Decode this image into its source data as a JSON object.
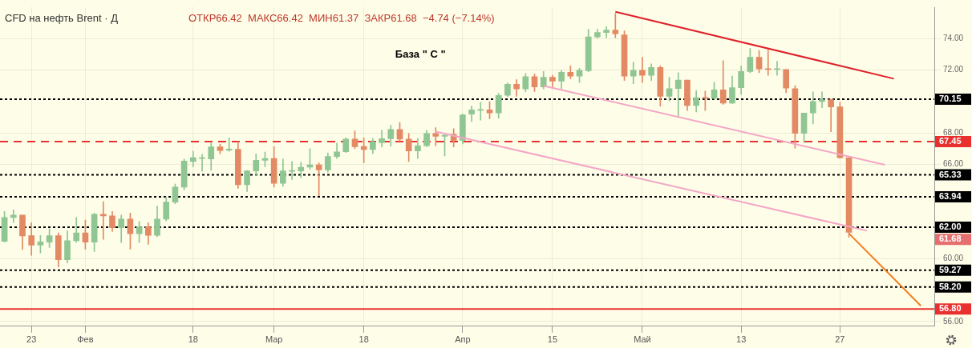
{
  "chart_data": {
    "type": "candlestick",
    "title": "CFD на нефть Brent · Д",
    "subtitle": "ОТКР66.42  МАКС66.42  МИН61.37  ЗАКР61.68  −4.74 (−7.14%)",
    "annotations": [
      "База \" С \"",
      "61.68"
    ],
    "categories": [
      null,
      null,
      null,
      "23",
      null,
      null,
      null,
      null,
      null,
      "Фев",
      null,
      null,
      null,
      null,
      null,
      null,
      null,
      null,
      null,
      null,
      null,
      "18",
      null,
      null,
      null,
      null,
      null,
      null,
      null,
      null,
      "Мар",
      null,
      null,
      null,
      null,
      null,
      null,
      null,
      null,
      null,
      "18",
      null,
      null,
      null,
      null,
      null,
      null,
      null,
      null,
      null,
      null,
      "Апр",
      null,
      null,
      null,
      null,
      null,
      null,
      null,
      null,
      null,
      "15",
      null,
      null,
      null,
      null,
      null,
      null,
      null,
      null,
      null,
      "Май",
      null,
      null,
      null,
      null,
      null,
      null,
      null,
      null,
      null,
      null,
      "13",
      null,
      null,
      null,
      null,
      null,
      null,
      null,
      null,
      null,
      null,
      "27",
      null,
      null,
      null,
      null,
      null,
      null,
      null,
      null,
      null,
      null
    ],
    "ylim": [
      55.7,
      76.0
    ],
    "yticks": [
      {
        "value": 56,
        "label": "56.00"
      },
      {
        "value": 60,
        "label": "60.00"
      },
      {
        "value": 66,
        "label": "66.00"
      },
      {
        "value": 68,
        "label": "68.00"
      },
      {
        "value": 72,
        "label": "72.00"
      },
      {
        "value": 74,
        "label": "74.00"
      }
    ],
    "grid": true,
    "series": [
      {
        "ohlc": [
          [
            61.1,
            63.0,
            61.07,
            62.62
          ],
          [
            62.62,
            63.1,
            62.3,
            62.77
          ],
          [
            62.78,
            62.78,
            60.58,
            61.45
          ],
          [
            61.46,
            62.29,
            60.21,
            60.86
          ],
          [
            60.86,
            61.48,
            60.37,
            61.07
          ],
          [
            61.05,
            61.89,
            60.71,
            61.46
          ],
          [
            61.46,
            61.64,
            59.47,
            59.93
          ],
          [
            59.93,
            61.77,
            59.73,
            61.15
          ],
          [
            61.14,
            62.62,
            61.04,
            61.64
          ],
          [
            61.64,
            62.46,
            60.61,
            61.05
          ],
          [
            61.05,
            62.9,
            60.45,
            62.83
          ],
          [
            62.83,
            63.63,
            61.23,
            62.72
          ],
          [
            62.72,
            63.0,
            61.72,
            61.97
          ],
          [
            61.97,
            62.78,
            61.02,
            62.52
          ],
          [
            62.52,
            62.9,
            60.61,
            61.58
          ],
          [
            61.58,
            62.37,
            61.02,
            62.02
          ],
          [
            62.02,
            62.29,
            60.91,
            61.49
          ],
          [
            61.49,
            63.35,
            61.4,
            62.52
          ],
          [
            62.52,
            63.93,
            62.4,
            63.6
          ],
          [
            63.6,
            64.75,
            63.5,
            64.55
          ],
          [
            64.55,
            66.34,
            64.39,
            66.21
          ],
          [
            66.18,
            66.83,
            65.85,
            66.42
          ],
          [
            66.37,
            66.64,
            65.56,
            66.42
          ],
          [
            66.34,
            67.35,
            65.62,
            67.11
          ],
          [
            67.11,
            67.29,
            66.67,
            66.88
          ],
          [
            66.9,
            67.68,
            66.83,
            66.97
          ],
          [
            66.96,
            67.45,
            64.47,
            64.7
          ],
          [
            64.71,
            65.61,
            64.27,
            65.59
          ],
          [
            65.58,
            66.67,
            65.28,
            66.26
          ],
          [
            66.26,
            66.78,
            65.85,
            66.37
          ],
          [
            66.37,
            67.12,
            64.55,
            64.79
          ],
          [
            64.79,
            66.34,
            64.6,
            65.59
          ],
          [
            65.56,
            66.18,
            65.04,
            65.6
          ],
          [
            65.58,
            66.13,
            65.15,
            65.82
          ],
          [
            65.82,
            67.0,
            65.69,
            65.97
          ],
          [
            65.97,
            66.1,
            64.0,
            65.64
          ],
          [
            65.64,
            66.72,
            65.5,
            66.5
          ],
          [
            66.5,
            67.35,
            66.37,
            66.8
          ],
          [
            66.8,
            67.68,
            66.75,
            67.61
          ],
          [
            67.61,
            68.13,
            66.99,
            67.12
          ],
          [
            67.14,
            67.68,
            66.1,
            66.94
          ],
          [
            66.94,
            67.65,
            66.67,
            67.43
          ],
          [
            67.37,
            68.17,
            67.11,
            67.63
          ],
          [
            67.63,
            68.49,
            67.16,
            68.22
          ],
          [
            68.22,
            68.66,
            67.48,
            67.61
          ],
          [
            67.61,
            67.97,
            66.18,
            66.86
          ],
          [
            66.86,
            67.65,
            66.37,
            67.19
          ],
          [
            67.19,
            68.17,
            67.12,
            67.97
          ],
          [
            67.97,
            68.33,
            67.19,
            67.78
          ],
          [
            67.78,
            67.97,
            66.54,
            67.85
          ],
          [
            67.92,
            68.27,
            67.11,
            67.53
          ],
          [
            67.53,
            69.2,
            67.3,
            69.15
          ],
          [
            69.19,
            69.71,
            68.73,
            69.47
          ],
          [
            69.44,
            69.95,
            68.81,
            69.47
          ],
          [
            69.47,
            69.99,
            68.9,
            69.27
          ],
          [
            69.27,
            70.52,
            68.94,
            70.39
          ],
          [
            70.39,
            71.18,
            70.3,
            71.1
          ],
          [
            71.1,
            71.39,
            70.33,
            70.8
          ],
          [
            70.8,
            71.78,
            70.61,
            71.58
          ],
          [
            71.58,
            71.75,
            70.64,
            70.93
          ],
          [
            70.93,
            71.91,
            70.8,
            71.54
          ],
          [
            71.54,
            71.67,
            70.93,
            71.29
          ],
          [
            71.29,
            71.99,
            70.8,
            71.86
          ],
          [
            71.86,
            72.27,
            71.45,
            71.62
          ],
          [
            71.62,
            72.11,
            71.21,
            71.99
          ],
          [
            71.96,
            74.6,
            71.9,
            74.11
          ],
          [
            74.11,
            74.6,
            74.03,
            74.39
          ],
          [
            74.39,
            74.76,
            74.06,
            74.55
          ],
          [
            74.55,
            75.6,
            74.06,
            74.31
          ],
          [
            74.24,
            74.5,
            71.34,
            71.62
          ],
          [
            71.62,
            72.51,
            71.13,
            71.99
          ],
          [
            71.99,
            72.81,
            71.21,
            71.67
          ],
          [
            71.67,
            72.4,
            71.34,
            72.16
          ],
          [
            72.16,
            72.27,
            69.71,
            70.33
          ],
          [
            70.33,
            71.54,
            70.04,
            70.82
          ],
          [
            70.82,
            71.83,
            69.06,
            71.37
          ],
          [
            71.37,
            71.37,
            69.43,
            69.74
          ],
          [
            69.74,
            70.69,
            69.34,
            70.25
          ],
          [
            70.25,
            70.66,
            69.43,
            70.2
          ],
          [
            70.2,
            71.22,
            70.15,
            70.74
          ],
          [
            70.74,
            72.6,
            69.82,
            69.9
          ],
          [
            69.9,
            71.62,
            69.87,
            70.88
          ],
          [
            70.88,
            72.27,
            70.44,
            71.91
          ],
          [
            71.91,
            73.38,
            71.83,
            72.81
          ],
          [
            72.81,
            73.25,
            71.83,
            72.07
          ],
          [
            72.07,
            73.3,
            71.67,
            72.04
          ],
          [
            72.04,
            72.56,
            71.66,
            72.06
          ],
          [
            72.04,
            72.04,
            70.56,
            70.85
          ],
          [
            70.82,
            71.01,
            67.03,
            67.97
          ],
          [
            67.97,
            69.27,
            67.39,
            69.27
          ],
          [
            69.27,
            70.61,
            68.57,
            70.0
          ],
          [
            70.0,
            70.61,
            69.6,
            70.12
          ],
          [
            70.12,
            70.15,
            68.08,
            69.66
          ],
          [
            69.66,
            69.95,
            66.38,
            66.42
          ],
          [
            66.42,
            66.42,
            61.37,
            61.68
          ],
          null,
          null,
          null,
          null,
          null,
          null,
          null,
          null,
          null
        ],
        "colors": [
          "#8fc693",
          "#8fc693",
          "#e38a64",
          "#e38a64",
          "#8fc693",
          "#8fc693",
          "#e38a64",
          "#8fc693",
          "#8fc693",
          "#e38a64",
          "#8fc693",
          "#e38a64",
          "#e38a64",
          "#8fc693",
          "#e38a64",
          "#8fc693",
          "#e38a64",
          "#8fc693",
          "#8fc693",
          "#8fc693",
          "#8fc693",
          "#8fc693",
          "#8fc693",
          "#8fc693",
          "#e38a64",
          "#8fc693",
          "#e38a64",
          "#8fc693",
          "#8fc693",
          "#8fc693",
          "#e38a64",
          "#8fc693",
          "#8fc693",
          "#8fc693",
          "#8fc693",
          "#e38a64",
          "#8fc693",
          "#8fc693",
          "#8fc693",
          "#e38a64",
          "#e38a64",
          "#8fc693",
          "#8fc693",
          "#8fc693",
          "#e38a64",
          "#e38a64",
          "#8fc693",
          "#8fc693",
          "#e38a64",
          "#8fc693",
          "#e38a64",
          "#8fc693",
          "#8fc693",
          "#8fc693",
          "#e38a64",
          "#8fc693",
          "#8fc693",
          "#e38a64",
          "#8fc693",
          "#e38a64",
          "#8fc693",
          "#e38a64",
          "#8fc693",
          "#e38a64",
          "#8fc693",
          "#8fc693",
          "#8fc693",
          "#8fc693",
          "#e38a64",
          "#e38a64",
          "#8fc693",
          "#e38a64",
          "#8fc693",
          "#e38a64",
          "#8fc693",
          "#8fc693",
          "#e38a64",
          "#8fc693",
          "#e38a64",
          "#8fc693",
          "#e38a64",
          "#8fc693",
          "#8fc693",
          "#8fc693",
          "#e38a64",
          "#e38a64",
          "#8fc693",
          "#e38a64",
          "#e38a64",
          "#8fc693",
          "#8fc693",
          "#8fc693",
          "#e38a64",
          "#e38a64",
          "#e38a64",
          null,
          null,
          null,
          null,
          null,
          null,
          null,
          null,
          null
        ]
      },
      {
        "type": "line",
        "color": "#e0202a",
        "values": [
          null,
          null,
          null,
          null,
          null,
          null,
          null,
          null,
          null,
          null,
          null,
          null,
          null,
          null,
          null,
          null,
          null,
          null,
          null,
          null,
          null,
          null,
          null,
          null,
          null,
          null,
          null,
          null,
          null,
          null,
          null,
          null,
          null,
          null,
          null,
          null,
          null,
          null,
          null,
          null,
          null,
          null,
          null,
          null,
          null,
          null,
          null,
          null,
          null,
          null,
          null,
          null,
          null,
          null,
          null,
          null,
          null,
          null,
          null,
          null,
          null,
          null,
          null,
          null,
          null,
          null,
          null,
          null,
          75.71,
          null,
          null,
          null,
          null,
          null,
          null,
          null,
          null,
          null,
          null,
          null,
          null,
          null,
          null,
          null,
          null,
          null,
          null,
          null,
          null,
          null,
          null,
          null,
          null,
          null,
          null,
          null,
          null,
          null,
          null,
          71.45,
          null,
          null,
          null,
          null
        ]
      },
      {
        "type": "line",
        "color": "#f4a6c6",
        "values": [
          null,
          null,
          null,
          null,
          null,
          null,
          null,
          null,
          null,
          null,
          null,
          null,
          null,
          null,
          null,
          null,
          null,
          null,
          null,
          null,
          null,
          null,
          null,
          null,
          null,
          null,
          null,
          null,
          null,
          null,
          null,
          null,
          null,
          null,
          null,
          null,
          null,
          null,
          null,
          null,
          null,
          null,
          null,
          null,
          null,
          null,
          null,
          null,
          null,
          null,
          null,
          null,
          null,
          null,
          null,
          null,
          null,
          null,
          null,
          null,
          71.0,
          null,
          null,
          null,
          null,
          null,
          null,
          null,
          null,
          null,
          null,
          null,
          null,
          null,
          null,
          null,
          null,
          null,
          null,
          null,
          null,
          null,
          null,
          null,
          null,
          null,
          null,
          null,
          null,
          null,
          null,
          null,
          null,
          null,
          null,
          null,
          null,
          null,
          65.97,
          null,
          null,
          null,
          null,
          null
        ]
      },
      {
        "type": "line",
        "color": "#f4a6c6",
        "values": [
          null,
          null,
          null,
          null,
          null,
          null,
          null,
          null,
          null,
          null,
          null,
          null,
          null,
          null,
          null,
          null,
          null,
          null,
          null,
          null,
          null,
          null,
          null,
          null,
          null,
          null,
          null,
          null,
          null,
          null,
          null,
          null,
          null,
          null,
          null,
          null,
          null,
          null,
          null,
          null,
          null,
          null,
          null,
          null,
          null,
          null,
          null,
          null,
          68.08,
          null,
          null,
          null,
          null,
          null,
          null,
          null,
          null,
          null,
          null,
          null,
          null,
          null,
          null,
          null,
          null,
          null,
          null,
          null,
          null,
          null,
          null,
          null,
          null,
          null,
          null,
          null,
          null,
          null,
          null,
          null,
          null,
          null,
          null,
          null,
          null,
          null,
          null,
          null,
          null,
          null,
          null,
          null,
          null,
          null,
          null,
          null,
          61.78,
          null,
          null,
          null,
          null,
          null,
          null,
          null
        ]
      },
      {
        "type": "line",
        "color": "#f57c1f",
        "values": [
          null,
          null,
          null,
          null,
          null,
          null,
          null,
          null,
          null,
          null,
          null,
          null,
          null,
          null,
          null,
          null,
          null,
          null,
          null,
          null,
          null,
          null,
          null,
          null,
          null,
          null,
          null,
          null,
          null,
          null,
          null,
          null,
          null,
          null,
          null,
          null,
          null,
          null,
          null,
          null,
          null,
          null,
          null,
          null,
          null,
          null,
          null,
          null,
          null,
          null,
          null,
          null,
          null,
          null,
          null,
          null,
          null,
          null,
          null,
          null,
          null,
          null,
          null,
          null,
          null,
          null,
          null,
          null,
          null,
          null,
          null,
          null,
          null,
          null,
          null,
          null,
          null,
          null,
          null,
          null,
          null,
          null,
          null,
          null,
          null,
          null,
          null,
          null,
          null,
          null,
          null,
          null,
          null,
          null,
          61.6,
          null,
          null,
          null,
          null,
          null,
          null,
          null,
          57.0,
          null
        ]
      }
    ],
    "ref_lines": [
      {
        "axis": "y",
        "value": 70.15,
        "label": "70.15",
        "color": "#000000",
        "line_style": "dotted"
      },
      {
        "axis": "y",
        "value": 67.45,
        "label": "67.45",
        "color": "#e8312f",
        "line_style": "dashed"
      },
      {
        "axis": "y",
        "value": 65.33,
        "label": "65.33",
        "color": "#000000",
        "line_style": "dotted"
      },
      {
        "axis": "y",
        "value": 63.94,
        "label": "63.94",
        "color": "#000000",
        "line_style": "dotted"
      },
      {
        "axis": "y",
        "value": 62.0,
        "label": "62.00",
        "color": "#000000",
        "line_style": "dotted"
      },
      {
        "axis": "y",
        "value": 59.27,
        "label": "59.27",
        "color": "#000000",
        "line_style": "dotted"
      },
      {
        "axis": "y",
        "value": 58.2,
        "label": "58.20",
        "color": "#000000",
        "line_style": "dotted"
      },
      {
        "axis": "y",
        "value": 56.8,
        "label": "56.80",
        "color": "#e8312f",
        "line_style": "solid"
      }
    ]
  }
}
